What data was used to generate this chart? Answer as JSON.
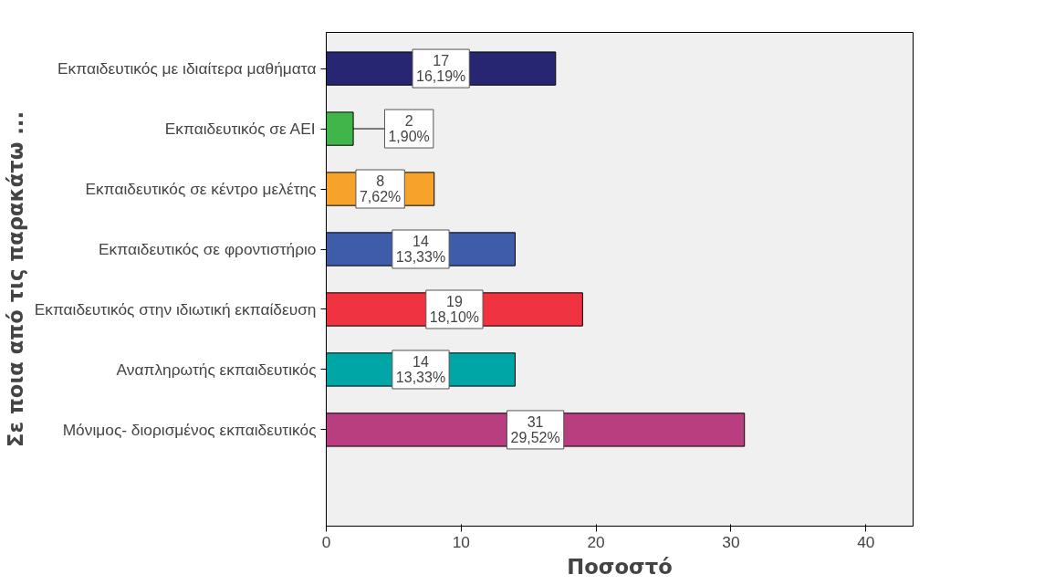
{
  "chart_data": {
    "type": "bar",
    "orientation": "horizontal",
    "xlabel": "Ποσοστό",
    "ylabel": "Σε ποια από τις παρακάτω ...",
    "categories": [
      "Εκπαιδευτικός με ιδιαίτερα μαθήματα",
      "Εκπαιδευτικός σε ΑΕΙ",
      "Εκπαιδευτικός σε κέντρο μελέτης",
      "Εκπαιδευτικός σε φροντιστήριο",
      "Εκπαιδευτικός στην ιδιωτική εκπαίδευση",
      "Αναπληρωτής εκπαιδευτικός",
      "Μόνιμος- διορισμένος εκπαιδευτικός"
    ],
    "values": [
      17,
      2,
      8,
      14,
      19,
      14,
      31
    ],
    "colors": [
      "#262672",
      "#3fb54a",
      "#f7a22b",
      "#3f5caa",
      "#ef3340",
      "#00a6a6",
      "#b83e7f"
    ],
    "value_labels": [
      "17\n16,19%",
      "2\n1,90%",
      "8\n7,62%",
      "14\n13,33%",
      "19\n18,10%",
      "14\n13,33%",
      "31\n29,52%"
    ],
    "xlim": [
      0,
      43.5
    ],
    "xticks": [
      0,
      10,
      20,
      30,
      40
    ],
    "grid": false
  }
}
